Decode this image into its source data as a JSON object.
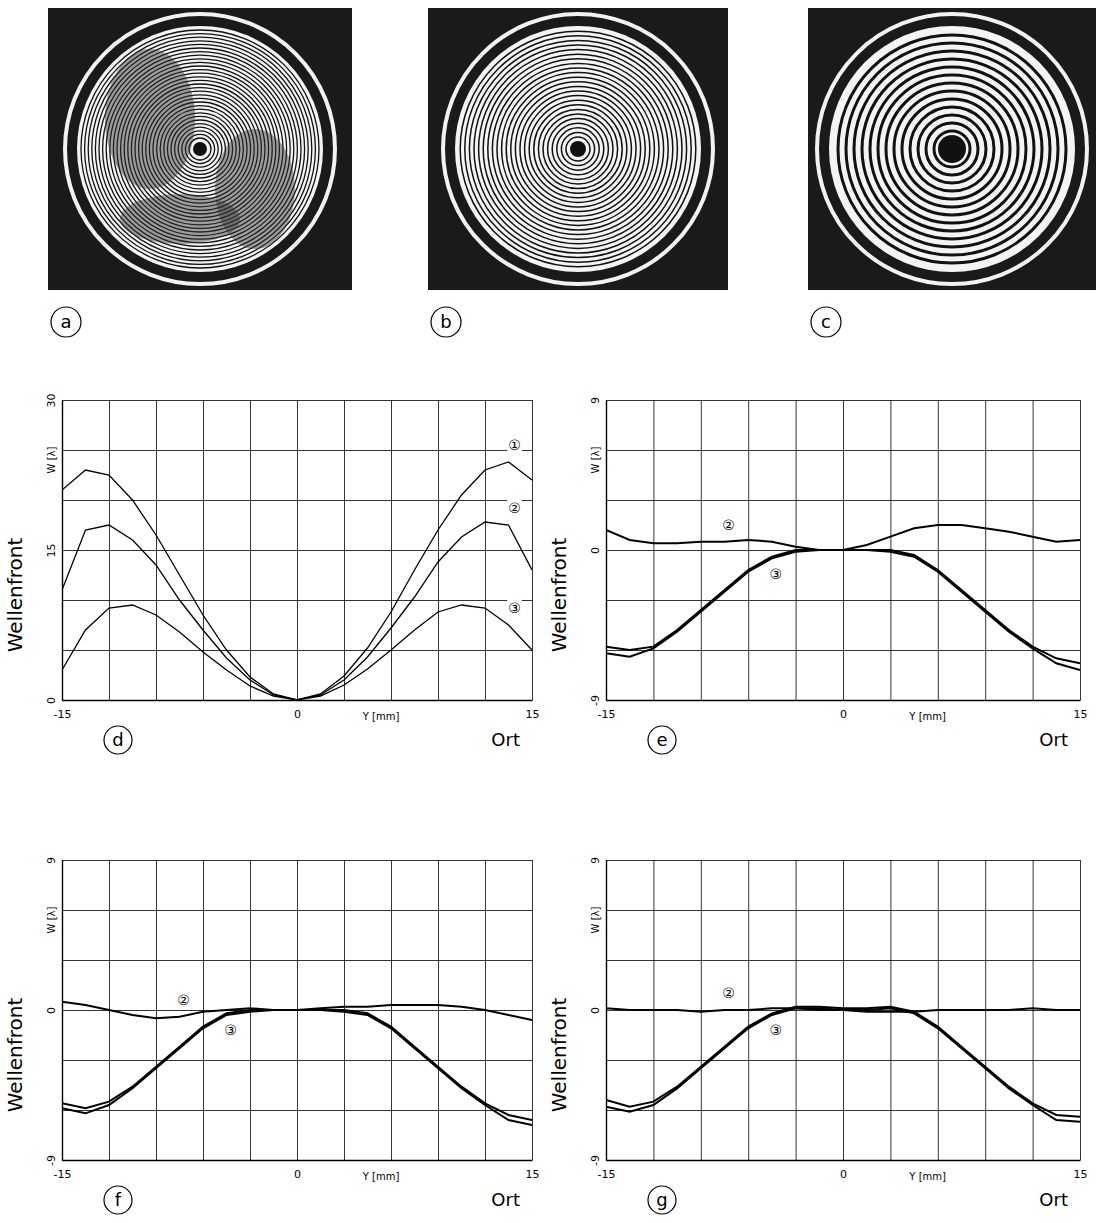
{
  "images": [
    {
      "label": "a"
    },
    {
      "label": "b"
    },
    {
      "label": "c"
    }
  ],
  "chart_data": [
    {
      "type": "line",
      "panel": "d",
      "ylabel": "Wellenfront",
      "yunit": "W [λ]",
      "xunit": "Y [mm]",
      "xlabel": "Ort",
      "xlim": [
        -15,
        15
      ],
      "ylim": [
        0,
        30
      ],
      "grid": true,
      "xticks": [
        -15,
        {
          "value": -12,
          "label": null
        },
        {
          "value": -9,
          "label": null
        },
        {
          "value": -6,
          "label": null
        },
        {
          "value": -3,
          "label": null
        },
        0,
        {
          "value": 3,
          "label": null
        },
        {
          "value": 6,
          "label": null
        },
        {
          "value": 9,
          "label": null
        },
        {
          "value": 12,
          "label": null
        },
        15
      ],
      "yticks": [
        0,
        {
          "value": 5,
          "label": null
        },
        {
          "value": 10,
          "label": null
        },
        15,
        {
          "value": 20,
          "label": null
        },
        {
          "value": 25,
          "label": null
        },
        30
      ],
      "x": [
        -15,
        -13.5,
        -12,
        -10.5,
        -9,
        -7.5,
        -6,
        -4.5,
        -3,
        -1.5,
        0,
        1.5,
        3,
        4.5,
        6,
        7.5,
        9,
        10.5,
        12,
        13.5,
        15
      ],
      "series": [
        {
          "name": "①",
          "color": "#000000",
          "values": [
            21,
            23,
            22.5,
            20,
            16.5,
            12.5,
            8.5,
            5,
            2.3,
            0.6,
            0,
            0.6,
            2.4,
            5.2,
            8.8,
            13,
            17,
            20.5,
            23,
            23.8,
            22
          ]
        },
        {
          "name": "②",
          "color": "#000000",
          "values": [
            11,
            17,
            17.5,
            16,
            13.5,
            10,
            7,
            4.2,
            2,
            0.5,
            0,
            0.5,
            2,
            4.3,
            7.2,
            10.3,
            13.8,
            16.3,
            17.8,
            17.5,
            13
          ]
        },
        {
          "name": "③",
          "color": "#000000",
          "values": [
            3,
            7,
            9.2,
            9.5,
            8.5,
            6.8,
            4.8,
            3,
            1.4,
            0.4,
            0,
            0.4,
            1.5,
            3.1,
            5,
            7,
            8.8,
            9.5,
            9.2,
            7.5,
            5
          ]
        }
      ]
    },
    {
      "type": "line",
      "panel": "e",
      "ylabel": "Wellenfront",
      "yunit": "W [λ]",
      "xunit": "Y [mm]",
      "xlabel": "Ort",
      "xlim": [
        -15,
        15
      ],
      "ylim": [
        -9,
        9
      ],
      "grid": true,
      "xticks": [
        -15,
        {
          "value": -12,
          "label": null
        },
        {
          "value": -9,
          "label": null
        },
        {
          "value": -6,
          "label": null
        },
        {
          "value": -3,
          "label": null
        },
        0,
        {
          "value": 3,
          "label": null
        },
        {
          "value": 6,
          "label": null
        },
        {
          "value": 9,
          "label": null
        },
        {
          "value": 12,
          "label": null
        },
        15
      ],
      "yticks": [
        -9,
        {
          "value": -6,
          "label": null
        },
        {
          "value": -3,
          "label": null
        },
        0,
        {
          "value": 3,
          "label": null
        },
        {
          "value": 6,
          "label": null
        },
        9
      ],
      "x": [
        -15,
        -13.5,
        -12,
        -10.5,
        -9,
        -7.5,
        -6,
        -4.5,
        -3,
        -1.5,
        0,
        1.5,
        3,
        4.5,
        6,
        7.5,
        9,
        10.5,
        12,
        13.5,
        15
      ],
      "series": [
        {
          "name": "②",
          "color": "#000000",
          "values": [
            1.2,
            0.6,
            0.4,
            0.4,
            0.5,
            0.5,
            0.6,
            0.5,
            0.2,
            0,
            0,
            0.3,
            0.8,
            1.3,
            1.5,
            1.5,
            1.3,
            1.1,
            0.8,
            0.5,
            0.6
          ]
        },
        {
          "name": "③",
          "color": "#000000",
          "values": [
            -5.8,
            -6,
            -5.8,
            -4.8,
            -3.6,
            -2.4,
            -1.2,
            -0.4,
            0,
            0,
            0,
            0,
            0,
            -0.3,
            -1.2,
            -2.4,
            -3.6,
            -4.8,
            -5.8,
            -6.5,
            -6.8
          ]
        },
        {
          "color": "#000000",
          "values": [
            -6.2,
            -6.4,
            -5.9,
            -4.9,
            -3.7,
            -2.5,
            -1.3,
            -0.5,
            -0.1,
            0,
            0,
            0,
            -0.1,
            -0.4,
            -1.3,
            -2.5,
            -3.7,
            -4.9,
            -5.9,
            -6.8,
            -7.2
          ]
        }
      ]
    },
    {
      "type": "line",
      "panel": "f",
      "ylabel": "Wellenfront",
      "yunit": "W [λ]",
      "xunit": "Y [mm]",
      "xlabel": "Ort",
      "xlim": [
        -15,
        15
      ],
      "ylim": [
        -9,
        9
      ],
      "grid": true,
      "xticks": [
        -15,
        {
          "value": -12,
          "label": null
        },
        {
          "value": -9,
          "label": null
        },
        {
          "value": -6,
          "label": null
        },
        {
          "value": -3,
          "label": null
        },
        0,
        {
          "value": 3,
          "label": null
        },
        {
          "value": 6,
          "label": null
        },
        {
          "value": 9,
          "label": null
        },
        {
          "value": 12,
          "label": null
        },
        15
      ],
      "yticks": [
        -9,
        {
          "value": -6,
          "label": null
        },
        {
          "value": -3,
          "label": null
        },
        0,
        {
          "value": 3,
          "label": null
        },
        {
          "value": 6,
          "label": null
        },
        9
      ],
      "x": [
        -15,
        -13.5,
        -12,
        -10.5,
        -9,
        -7.5,
        -6,
        -4.5,
        -3,
        -1.5,
        0,
        1.5,
        3,
        4.5,
        6,
        7.5,
        9,
        10.5,
        12,
        13.5,
        15
      ],
      "series": [
        {
          "name": "②",
          "color": "#000000",
          "values": [
            0.5,
            0.3,
            0,
            -0.3,
            -0.5,
            -0.4,
            -0.1,
            0,
            0.1,
            0,
            0,
            0.1,
            0.2,
            0.2,
            0.3,
            0.3,
            0.3,
            0.2,
            0,
            -0.3,
            -0.6
          ]
        },
        {
          "name": "③",
          "color": "#000000",
          "values": [
            -5.6,
            -5.9,
            -5.5,
            -4.6,
            -3.4,
            -2.2,
            -1,
            -0.2,
            0,
            0,
            0,
            0,
            0,
            -0.2,
            -1,
            -2.2,
            -3.4,
            -4.6,
            -5.6,
            -6.3,
            -6.6
          ]
        },
        {
          "color": "#000000",
          "values": [
            -5.9,
            -6.2,
            -5.7,
            -4.7,
            -3.5,
            -2.3,
            -1.1,
            -0.3,
            -0.1,
            0,
            0,
            0,
            -0.1,
            -0.3,
            -1.1,
            -2.3,
            -3.5,
            -4.7,
            -5.7,
            -6.6,
            -6.9
          ]
        }
      ]
    },
    {
      "type": "line",
      "panel": "g",
      "ylabel": "Wellenfront",
      "yunit": "W [λ]",
      "xunit": "Y [mm]",
      "xlabel": "Ort",
      "xlim": [
        -15,
        15
      ],
      "ylim": [
        -9,
        9
      ],
      "grid": true,
      "xticks": [
        -15,
        {
          "value": -12,
          "label": null
        },
        {
          "value": -9,
          "label": null
        },
        {
          "value": -6,
          "label": null
        },
        {
          "value": -3,
          "label": null
        },
        0,
        {
          "value": 3,
          "label": null
        },
        {
          "value": 6,
          "label": null
        },
        {
          "value": 9,
          "label": null
        },
        {
          "value": 12,
          "label": null
        },
        15
      ],
      "yticks": [
        -9,
        {
          "value": -6,
          "label": null
        },
        {
          "value": -3,
          "label": null
        },
        0,
        {
          "value": 3,
          "label": null
        },
        {
          "value": 6,
          "label": null
        },
        9
      ],
      "x": [
        -15,
        -13.5,
        -12,
        -10.5,
        -9,
        -7.5,
        -6,
        -4.5,
        -3,
        -1.5,
        0,
        1.5,
        3,
        4.5,
        6,
        7.5,
        9,
        10.5,
        12,
        13.5,
        15
      ],
      "series": [
        {
          "name": "②",
          "color": "#000000",
          "values": [
            0.1,
            0,
            0,
            0,
            -0.1,
            0,
            0,
            0.1,
            0.1,
            0,
            0,
            -0.1,
            -0.1,
            -0.1,
            0,
            0,
            0,
            0,
            0.1,
            0,
            0
          ]
        },
        {
          "name": "③",
          "color": "#000000",
          "values": [
            -5.4,
            -5.8,
            -5.5,
            -4.6,
            -3.4,
            -2.2,
            -1,
            -0.2,
            0.2,
            0.2,
            0.1,
            0.1,
            0.2,
            -0.1,
            -1,
            -2.2,
            -3.4,
            -4.6,
            -5.6,
            -6.3,
            -6.4
          ]
        },
        {
          "color": "#000000",
          "values": [
            -5.8,
            -6.1,
            -5.7,
            -4.7,
            -3.5,
            -2.3,
            -1.1,
            -0.3,
            0.1,
            0.1,
            0,
            0,
            0.1,
            -0.2,
            -1.1,
            -2.3,
            -3.5,
            -4.7,
            -5.7,
            -6.6,
            -6.7
          ]
        }
      ]
    }
  ]
}
